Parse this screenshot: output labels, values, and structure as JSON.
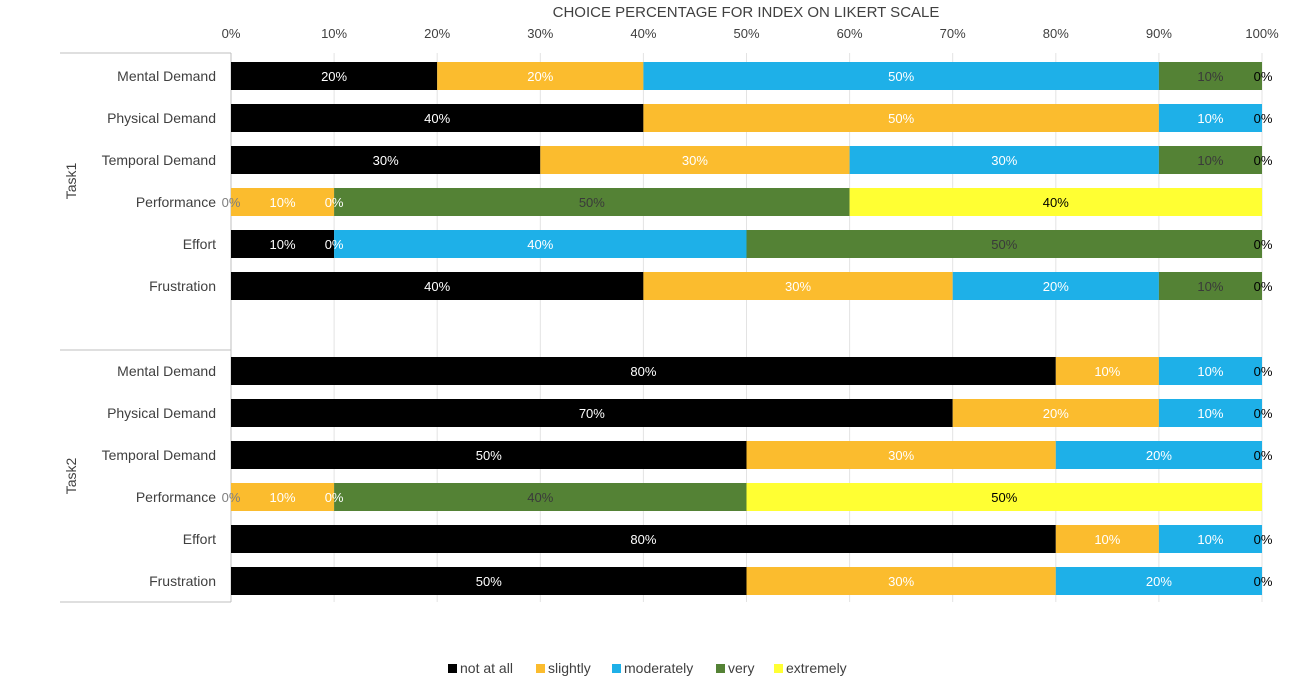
{
  "chart_data": {
    "type": "bar",
    "orientation": "horizontal",
    "stacked": true,
    "title": "CHOICE PERCENTAGE FOR INDEX ON LIKERT SCALE",
    "xlim": [
      0,
      100
    ],
    "x_ticks": [
      "0%",
      "10%",
      "20%",
      "30%",
      "40%",
      "50%",
      "60%",
      "70%",
      "80%",
      "90%",
      "100%"
    ],
    "grid": true,
    "legend_position": "bottom",
    "series": [
      {
        "name": "not at all",
        "color": "#000000",
        "label_color": "#ffffff"
      },
      {
        "name": "slightly",
        "color": "#FBBC2E",
        "label_color": "#ffffff"
      },
      {
        "name": "moderately",
        "color": "#1EB0E8",
        "label_color": "#ffffff"
      },
      {
        "name": "very",
        "color": "#548235",
        "label_color": "#3a3a3a"
      },
      {
        "name": "extremely",
        "color": "#FFFF33",
        "label_color": "#000000"
      }
    ],
    "groups": [
      {
        "name": "Task1",
        "rows": [
          {
            "category": "Mental Demand",
            "values": [
              20,
              20,
              50,
              10,
              0
            ],
            "labels": [
              "20%",
              "20%",
              "50%",
              "10%",
              "0%"
            ]
          },
          {
            "category": "Physical Demand",
            "values": [
              40,
              50,
              10,
              0,
              0
            ],
            "labels": [
              "40%",
              "50%",
              "10%",
              "0%",
              ""
            ]
          },
          {
            "category": "Temporal Demand",
            "values": [
              30,
              30,
              30,
              10,
              0
            ],
            "labels": [
              "30%",
              "30%",
              "30%",
              "10%",
              "0%"
            ]
          },
          {
            "category": "Performance",
            "values": [
              0,
              10,
              0,
              50,
              40
            ],
            "labels": [
              "0%",
              "10%",
              "0%",
              "50%",
              "40%"
            ]
          },
          {
            "category": "Effort",
            "values": [
              10,
              0,
              40,
              50,
              0
            ],
            "labels": [
              "10%",
              "0%",
              "40%",
              "50%",
              "0%"
            ]
          },
          {
            "category": "Frustration",
            "values": [
              40,
              30,
              20,
              10,
              0
            ],
            "labels": [
              "40%",
              "30%",
              "20%",
              "10%",
              "0%"
            ]
          }
        ]
      },
      {
        "name": "Task2",
        "rows": [
          {
            "category": "Mental Demand",
            "values": [
              80,
              10,
              10,
              0,
              0
            ],
            "labels": [
              "80%",
              "10%",
              "10%",
              "0%",
              ""
            ]
          },
          {
            "category": "Physical Demand",
            "values": [
              70,
              20,
              10,
              0,
              0
            ],
            "labels": [
              "70%",
              "20%",
              "10%",
              "0%",
              ""
            ]
          },
          {
            "category": "Temporal Demand",
            "values": [
              50,
              30,
              20,
              0,
              0
            ],
            "labels": [
              "50%",
              "30%",
              "20%",
              "0%",
              ""
            ]
          },
          {
            "category": "Performance",
            "values": [
              0,
              10,
              0,
              40,
              50
            ],
            "labels": [
              "0%",
              "10%",
              "0%",
              "40%",
              "50%"
            ]
          },
          {
            "category": "Effort",
            "values": [
              80,
              10,
              10,
              0,
              0
            ],
            "labels": [
              "80%",
              "10%",
              "10%",
              "0%",
              ""
            ]
          },
          {
            "category": "Frustration",
            "values": [
              50,
              30,
              20,
              0,
              0
            ],
            "labels": [
              "50%",
              "30%",
              "20%",
              "0%",
              ""
            ]
          }
        ]
      }
    ]
  }
}
